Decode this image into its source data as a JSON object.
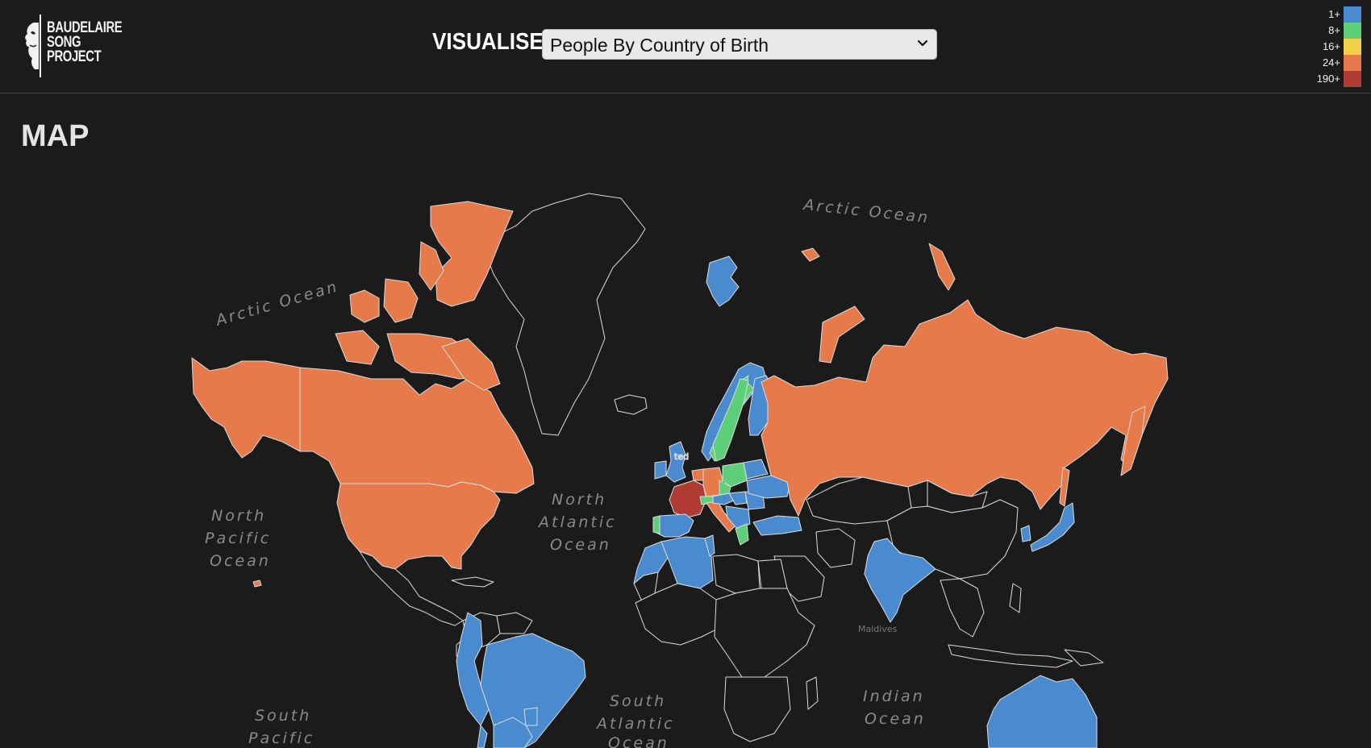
{
  "header": {
    "logo": {
      "line1": "BAUDELAIRE",
      "line2": "SONG",
      "line3": "PROJECT",
      "icon": "baudelaire-portrait-icon"
    },
    "visualise_label": "VISUALISE",
    "select": {
      "value": "People By Country of Birth",
      "icon": "chevron-down-icon"
    }
  },
  "legend": [
    {
      "label": "1+",
      "color": "#4a8bd0"
    },
    {
      "label": "8+",
      "color": "#5ccf78"
    },
    {
      "label": "16+",
      "color": "#f3d14a"
    },
    {
      "label": "24+",
      "color": "#e67a4a"
    },
    {
      "label": "190+",
      "color": "#b03a34"
    }
  ],
  "main": {
    "title": "MAP"
  },
  "map": {
    "oceans": {
      "arctic_left": "Arctic Ocean",
      "arctic_right": "Arctic Ocean",
      "north_pacific": [
        "North",
        "Pacific",
        "Ocean"
      ],
      "north_atlantic": [
        "North",
        "Atlantic",
        "Ocean"
      ],
      "south_atlantic": [
        "South",
        "Atlantic",
        "Ocean"
      ],
      "south_pacific": [
        "South",
        "Pacific"
      ],
      "indian": [
        "Indian",
        "Ocean"
      ]
    },
    "place_labels": {
      "maldives": "Maldives"
    },
    "colors": {
      "land_outline": "#dcdcdc",
      "no_data": "#1c1b1c"
    }
  }
}
